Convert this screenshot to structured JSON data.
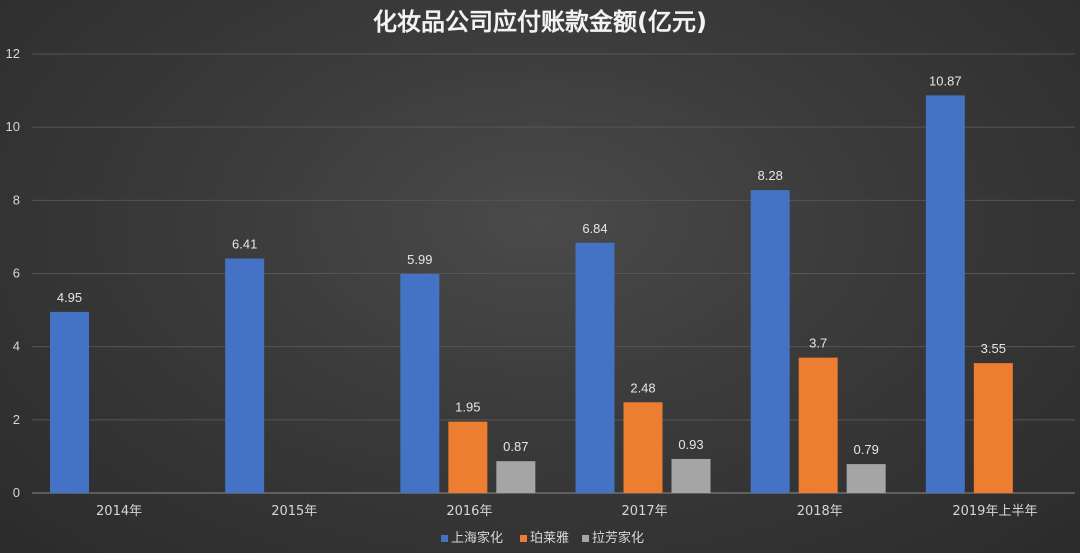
{
  "chart_data": {
    "type": "bar",
    "title": "化妆品公司应付账款金额(亿元)",
    "categories": [
      "2014年",
      "2015年",
      "2016年",
      "2017年",
      "2018年",
      "2019年上半年"
    ],
    "series": [
      {
        "name": "上海家化",
        "color": "#4472c4",
        "values": [
          4.95,
          6.41,
          5.99,
          6.84,
          8.28,
          10.87
        ]
      },
      {
        "name": "珀莱雅",
        "color": "#ed7d31",
        "values": [
          null,
          null,
          1.95,
          2.48,
          3.7,
          3.55
        ]
      },
      {
        "name": "拉芳家化",
        "color": "#a5a5a5",
        "values": [
          null,
          null,
          0.87,
          0.93,
          0.79,
          null
        ]
      }
    ],
    "ylim": [
      0,
      12
    ],
    "yticks": [
      0,
      2,
      4,
      6,
      8,
      10,
      12
    ],
    "grid": true,
    "legend_position": "bottom",
    "xlabel": "",
    "ylabel": ""
  }
}
